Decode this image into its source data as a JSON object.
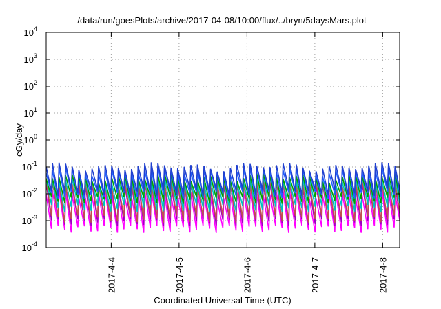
{
  "chart_data": {
    "type": "line",
    "title": "/data/run/goesPlots/archive/2017-04-08/10:00/flux/../bryn/5daysMars.plot",
    "xlabel": "Coordinated Universal Time (UTC)",
    "ylabel": "cGy/day",
    "yscale": "log",
    "ylim": [
      0.0001,
      10000
    ],
    "xlim": [
      "2017-04-03 01:00",
      "2017-04-08 06:00"
    ],
    "grid": true,
    "y_ticks": [
      {
        "base": "10",
        "exp": "-4"
      },
      {
        "base": "10",
        "exp": "-3"
      },
      {
        "base": "10",
        "exp": "-2"
      },
      {
        "base": "10",
        "exp": "-1"
      },
      {
        "base": "10",
        "exp": "0"
      },
      {
        "base": "10",
        "exp": "1"
      },
      {
        "base": "10",
        "exp": "2"
      },
      {
        "base": "10",
        "exp": "3"
      },
      {
        "base": "10",
        "exp": "4"
      }
    ],
    "x_ticks": [
      {
        "label": "2017-4-4",
        "time": "2017-04-04 00:00"
      },
      {
        "label": "2017-4-5",
        "time": "2017-04-05 00:00"
      },
      {
        "label": "2017-4-6",
        "time": "2017-04-06 00:00"
      },
      {
        "label": "2017-4-7",
        "time": "2017-04-07 00:00"
      },
      {
        "label": "2017-4-8",
        "time": "2017-04-08 00:00"
      }
    ],
    "pattern": {
      "description": "sawtooth cycles",
      "cycles_per_day": 10.3
    },
    "series": [
      {
        "color": "#ff00ff",
        "peak": 0.01,
        "trough": 0.0005
      },
      {
        "color": "#a000c0",
        "peak": 0.02,
        "trough": 0.0009
      },
      {
        "color": "#c05050",
        "peak": 0.025,
        "trough": 0.0012
      },
      {
        "color": "#00c0c0",
        "peak": 0.04,
        "trough": 0.003
      },
      {
        "color": "#00a000",
        "peak": 0.05,
        "trough": 0.006
      },
      {
        "color": "#2060ff",
        "peak": 0.07,
        "trough": 0.009
      },
      {
        "color": "#2040d0",
        "peak": 0.09,
        "trough": 0.012
      }
    ]
  }
}
